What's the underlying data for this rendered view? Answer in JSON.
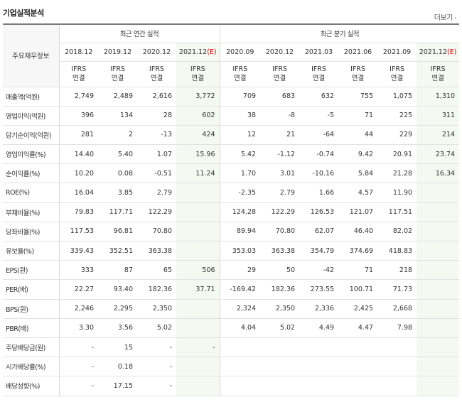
{
  "header": {
    "title": "기업실적분석",
    "more_label": "더보기",
    "more_icon": "chevron-right-icon"
  },
  "table": {
    "metric_header": "주요재무정보",
    "annual_group": "최근 연간 실적",
    "quarterly_group": "최근 분기 실적",
    "periods": [
      {
        "label": "2018.12",
        "est": ""
      },
      {
        "label": "2019.12",
        "est": ""
      },
      {
        "label": "2020.12",
        "est": ""
      },
      {
        "label": "2021.12",
        "est": "(E)"
      },
      {
        "label": "2020.09",
        "est": ""
      },
      {
        "label": "2020.12",
        "est": ""
      },
      {
        "label": "2021.03",
        "est": ""
      },
      {
        "label": "2021.06",
        "est": ""
      },
      {
        "label": "2021.09",
        "est": ""
      },
      {
        "label": "2021.12",
        "est": "(E)"
      }
    ],
    "basis_line1": "IFRS",
    "basis_line2": "연결",
    "rows": [
      {
        "label": "매출액(억원)",
        "values": [
          "2,749",
          "2,489",
          "2,616",
          "3,772",
          "709",
          "683",
          "632",
          "755",
          "1,075",
          "1,310"
        ]
      },
      {
        "label": "영업이익(억원)",
        "values": [
          "396",
          "134",
          "28",
          "602",
          "38",
          "-8",
          "-5",
          "71",
          "225",
          "311"
        ]
      },
      {
        "label": "당기순이익(억원)",
        "values": [
          "281",
          "2",
          "-13",
          "424",
          "12",
          "21",
          "-64",
          "44",
          "229",
          "214"
        ]
      },
      {
        "label": "영업이익률(%)",
        "values": [
          "14.40",
          "5.40",
          "1.07",
          "15.96",
          "5.42",
          "-1.12",
          "-0.74",
          "9.42",
          "20.91",
          "23.74"
        ]
      },
      {
        "label": "순이익률(%)",
        "values": [
          "10.20",
          "0.08",
          "-0.51",
          "11.24",
          "1.70",
          "3.01",
          "-10.16",
          "5.84",
          "21.28",
          "16.34"
        ]
      },
      {
        "label": "ROE(%)",
        "values": [
          "16.04",
          "3.85",
          "2.79",
          "",
          "-2.35",
          "2.79",
          "1.66",
          "4.57",
          "11.90",
          ""
        ]
      },
      {
        "label": "부채비율(%)",
        "values": [
          "79.83",
          "117.71",
          "122.29",
          "",
          "124.28",
          "122.29",
          "126.53",
          "121.07",
          "117.51",
          ""
        ]
      },
      {
        "label": "당좌비율(%)",
        "values": [
          "117.53",
          "96.81",
          "70.80",
          "",
          "89.94",
          "70.80",
          "62.07",
          "46.40",
          "82.02",
          ""
        ]
      },
      {
        "label": "유보율(%)",
        "values": [
          "339.43",
          "352.51",
          "363.38",
          "",
          "353.03",
          "363.38",
          "354.79",
          "374.69",
          "418.83",
          ""
        ]
      },
      {
        "label": "EPS(원)",
        "values": [
          "333",
          "87",
          "65",
          "506",
          "29",
          "50",
          "-42",
          "71",
          "218",
          ""
        ]
      },
      {
        "label": "PER(배)",
        "values": [
          "22.27",
          "93.40",
          "182.36",
          "37.71",
          "-169.42",
          "182.36",
          "273.55",
          "100.71",
          "71.73",
          ""
        ]
      },
      {
        "label": "BPS(원)",
        "values": [
          "2,246",
          "2,295",
          "2,350",
          "",
          "2,324",
          "2,350",
          "2,336",
          "2,425",
          "2,668",
          ""
        ]
      },
      {
        "label": "PBR(배)",
        "values": [
          "3.30",
          "3.56",
          "5.02",
          "",
          "4.04",
          "5.02",
          "4.49",
          "4.47",
          "7.98",
          ""
        ]
      },
      {
        "label": "주당배당금(원)",
        "values": [
          "-",
          "15",
          "-",
          "-",
          "",
          "",
          "",
          "",
          "",
          ""
        ]
      },
      {
        "label": "시가배당률(%)",
        "values": [
          "-",
          "0.18",
          "-",
          "",
          "",
          "",
          "",
          "",
          "",
          ""
        ]
      },
      {
        "label": "배당성향(%)",
        "values": [
          "-",
          "17.15",
          "-",
          "",
          "",
          "",
          "",
          "",
          "",
          ""
        ]
      }
    ]
  },
  "colors": {
    "negative": "#e00000",
    "ifrs": "#ff6a00",
    "estimate_bg": "#f4f9f2"
  }
}
